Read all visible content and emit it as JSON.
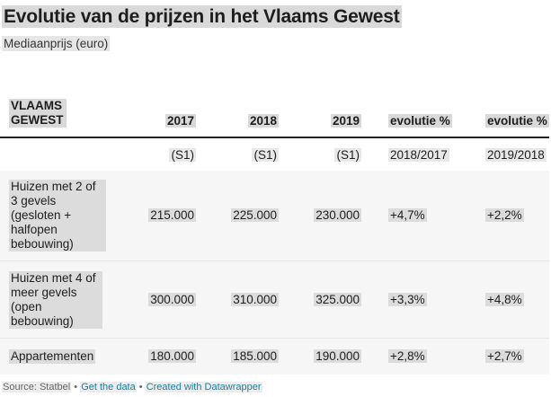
{
  "title": "Evolutie van de prijzen in het Vlaams Gewest",
  "subtitle": "Mediaanprijs (euro)",
  "chart_data": {
    "type": "table",
    "columns": [
      "VLAAMS GEWEST",
      "2017",
      "2018",
      "2019",
      "evolutie %",
      "evolutie %"
    ],
    "subheaders": [
      "",
      "(S1)",
      "(S1)",
      "(S1)",
      "2018/2017",
      "2019/2018"
    ],
    "rows": [
      {
        "label": "Huizen met 2 of 3 gevels (gesloten + halfopen bebouwing)",
        "values": [
          "215.000",
          "225.000",
          "230.000",
          "+4,7%",
          "+2,2%"
        ]
      },
      {
        "label": "Huizen met 4 of meer gevels (open bebouwing)",
        "values": [
          "300.000",
          "310.000",
          "325.000",
          "+3,3%",
          "+4,8%"
        ]
      },
      {
        "label": "Appartementen",
        "values": [
          "180.000",
          "185.000",
          "190.000",
          "+2,8%",
          "+2,7%"
        ]
      }
    ]
  },
  "footer": {
    "source": "Source: Statbel",
    "separator": " • ",
    "get_data": "Get the data",
    "created_with": "Created with Datawrapper"
  }
}
